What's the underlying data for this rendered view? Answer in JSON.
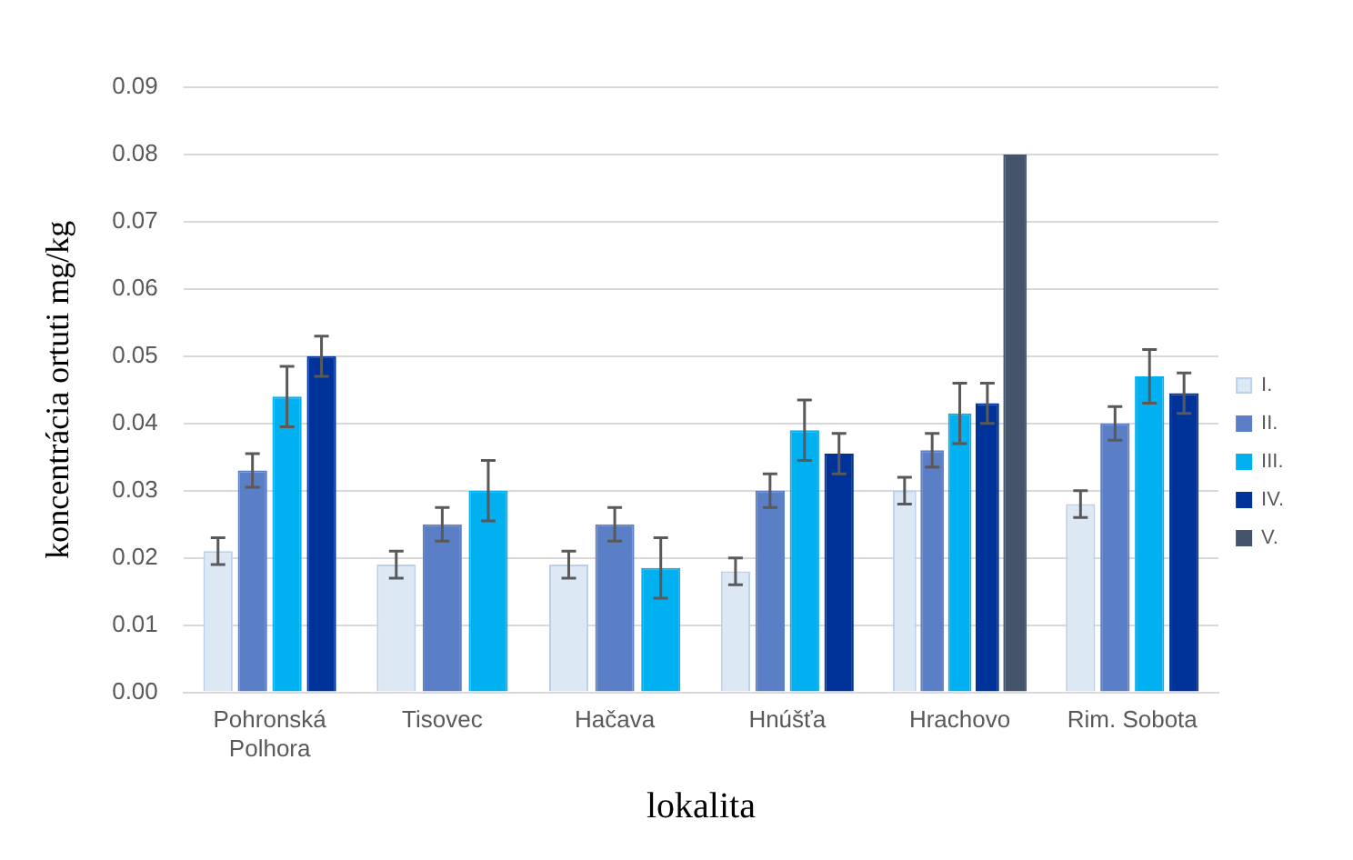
{
  "chart_data": {
    "type": "bar",
    "xlabel": "lokalita",
    "ylabel": "koncentrácia ortuti mg/kg",
    "categories": [
      "Pohronská Polhora",
      "Tisovec",
      "Hačava",
      "Hnúšťa",
      "Hrachovo",
      "Rim. Sobota"
    ],
    "series": [
      {
        "name": "I.",
        "color": "#dde8f5",
        "values": [
          0.021,
          0.019,
          0.019,
          0.018,
          0.03,
          0.028
        ],
        "errors": [
          0.002,
          0.002,
          0.002,
          0.002,
          0.002,
          0.002
        ]
      },
      {
        "name": "II.",
        "color": "#5b7fc7",
        "values": [
          0.033,
          0.025,
          0.025,
          0.03,
          0.036,
          0.04
        ],
        "errors": [
          0.0025,
          0.0025,
          0.0025,
          0.0025,
          0.0025,
          0.0025
        ]
      },
      {
        "name": "III.",
        "color": "#00b0f0",
        "values": [
          0.044,
          0.03,
          0.0185,
          0.039,
          0.0415,
          0.047
        ],
        "errors": [
          0.0045,
          0.0045,
          0.0045,
          0.0045,
          0.0045,
          0.004
        ]
      },
      {
        "name": "IV.",
        "color": "#003399",
        "values": [
          0.05,
          null,
          null,
          0.0355,
          0.043,
          0.0445
        ],
        "errors": [
          0.003,
          null,
          null,
          0.003,
          0.003,
          0.003
        ]
      },
      {
        "name": "V.",
        "color": "#44546a",
        "values": [
          null,
          null,
          null,
          null,
          0.08,
          null
        ]
      }
    ],
    "ylim": [
      0,
      0.09
    ],
    "yticks": [
      {
        "value": 0,
        "label": "0.00"
      },
      {
        "value": 0.01,
        "label": "0.01"
      },
      {
        "value": 0.02,
        "label": "0.02"
      },
      {
        "value": 0.03,
        "label": "0.03"
      },
      {
        "value": 0.04,
        "label": "0.04"
      },
      {
        "value": 0.05,
        "label": "0.05"
      },
      {
        "value": 0.06,
        "label": "0.06"
      },
      {
        "value": 0.07,
        "label": "0.07"
      },
      {
        "value": 0.08,
        "label": "0.08"
      },
      {
        "value": 0.09,
        "label": "0.09"
      }
    ],
    "grid": "y",
    "legend": "right"
  }
}
